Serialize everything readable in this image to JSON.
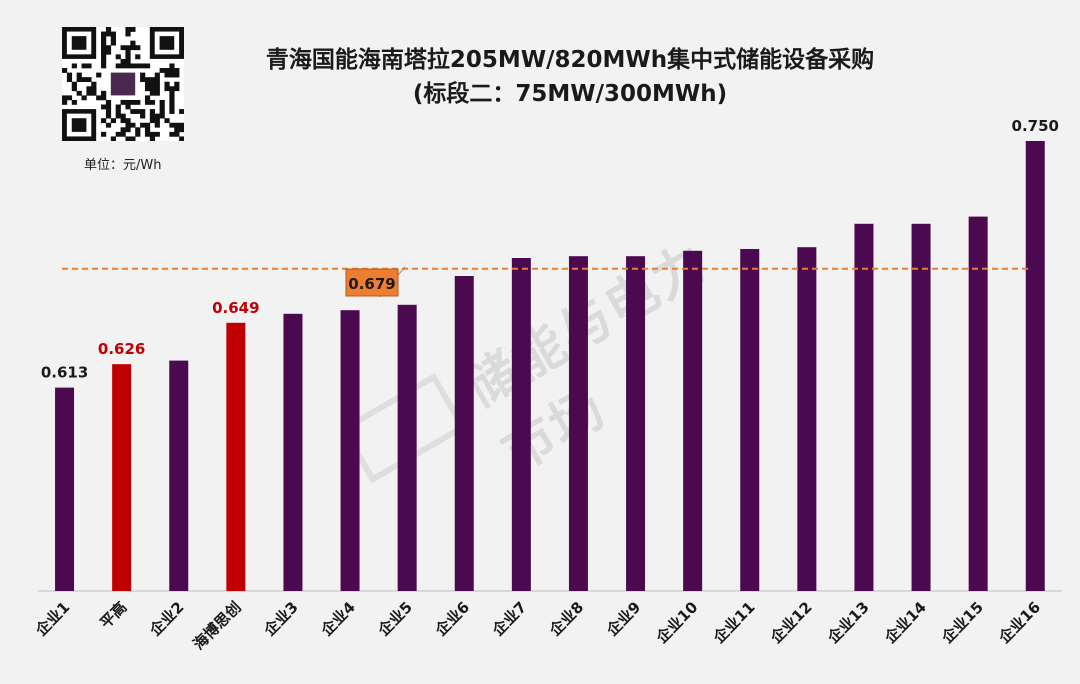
{
  "title_line1": "青海国能海南塔拉205MW/820MWh集中式储能设备采购",
  "title_line2": "(标段二：75MW/300MWh)",
  "unit_label": "单位：元/Wh",
  "watermark_text": "储能与电力市场",
  "colors": {
    "bar_default": "#4b0a4f",
    "bar_highlight": "#c00000",
    "avg_line": "#ed7d31",
    "avg_label_bg": "#ed7d31",
    "highlight_label_text": "#c00000",
    "default_label_text": "#1a1a1a"
  },
  "chart_data": {
    "type": "bar",
    "title": "青海国能海南塔拉205MW/820MWh集中式储能设备采购 (标段二：75MW/300MWh)",
    "ylabel": "元/Wh",
    "categories": [
      "企业1",
      "平高",
      "企业2",
      "海博思创",
      "企业3",
      "企业4",
      "企业5",
      "企业6",
      "企业7",
      "企业8",
      "企业9",
      "企业10",
      "企业11",
      "企业12",
      "企业13",
      "企业14",
      "企业15",
      "企业16"
    ],
    "values": [
      0.613,
      0.626,
      0.628,
      0.649,
      0.654,
      0.656,
      0.659,
      0.675,
      0.685,
      0.686,
      0.686,
      0.689,
      0.69,
      0.691,
      0.704,
      0.704,
      0.708,
      0.75
    ],
    "highlighted": [
      "平高",
      "海博思创"
    ],
    "labels_shown": {
      "企业1": "0.613",
      "平高": "0.626",
      "海博思创": "0.649",
      "企业16": "0.750"
    },
    "average": 0.679,
    "average_label": "0.679",
    "ylim": [
      0.5,
      0.76
    ]
  }
}
